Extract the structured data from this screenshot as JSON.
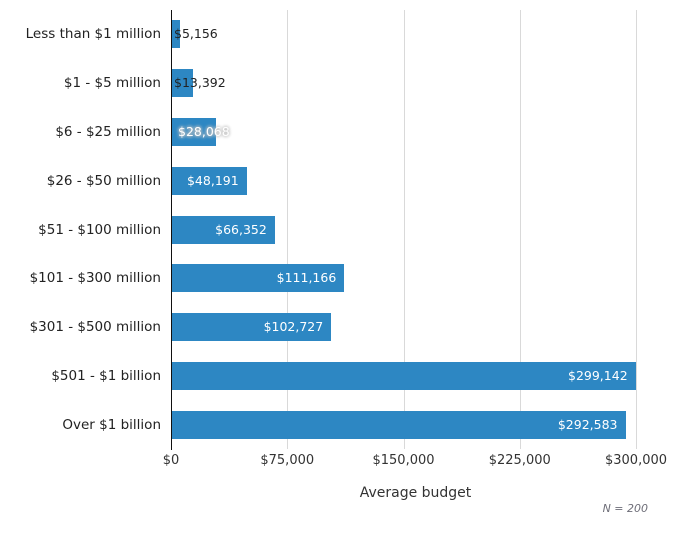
{
  "chart_data": {
    "type": "bar",
    "orientation": "horizontal",
    "title": "",
    "xlabel": "Average budget",
    "ylabel": "",
    "categories": [
      "Less than $1 million",
      "$1 - $5 million",
      "$6 - $25 million",
      "$26 - $50 million",
      "$51 - $100 million",
      "$101 - $300 million",
      "$301 - $500 million",
      "$501 - $1 billion",
      "Over $1 billion"
    ],
    "values": [
      5156,
      13392,
      28068,
      48191,
      66352,
      111166,
      102727,
      299142,
      292583
    ],
    "value_labels": [
      "$5,156",
      "$13,392",
      "$28,068",
      "$48,191",
      "$66,352",
      "$111,166",
      "$102,727",
      "$299,142",
      "$292,583"
    ],
    "x_ticks": [
      "$0",
      "$75,000",
      "$150,000",
      "$225,000",
      "$300,000"
    ],
    "x_tick_values": [
      0,
      75000,
      150000,
      225000,
      300000
    ],
    "xlim": [
      0,
      300000
    ],
    "grid": true,
    "legend_position": "none",
    "note": "N = 200",
    "bar_color": "#2d87c3"
  }
}
